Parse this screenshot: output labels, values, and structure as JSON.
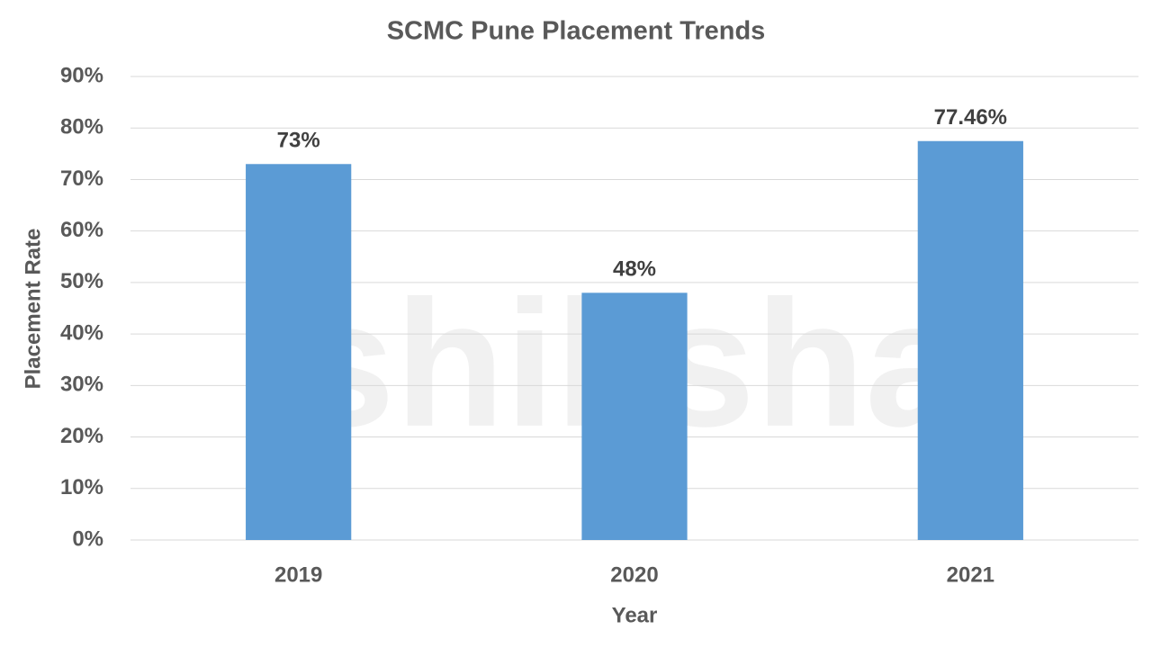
{
  "chart_data": {
    "type": "bar",
    "title": "SCMC Pune Placement Trends",
    "x_label": "Year",
    "y_label": "Placement Rate",
    "watermark": "shiksha",
    "categories": [
      "2019",
      "2020",
      "2021"
    ],
    "values": [
      73,
      48,
      77.46
    ],
    "value_labels": [
      "73%",
      "48%",
      "77.46%"
    ],
    "color": "#5b9bd5",
    "ylim": [
      0,
      90
    ],
    "yticks": [
      {
        "value": 0,
        "label": "0%"
      },
      {
        "value": 10,
        "label": "10%"
      },
      {
        "value": 20,
        "label": "20%"
      },
      {
        "value": 30,
        "label": "30%"
      },
      {
        "value": 40,
        "label": "40%"
      },
      {
        "value": 50,
        "label": "50%"
      },
      {
        "value": 60,
        "label": "60%"
      },
      {
        "value": 70,
        "label": "70%"
      },
      {
        "value": 80,
        "label": "80%"
      },
      {
        "value": 90,
        "label": "90%"
      }
    ],
    "grid": true
  }
}
